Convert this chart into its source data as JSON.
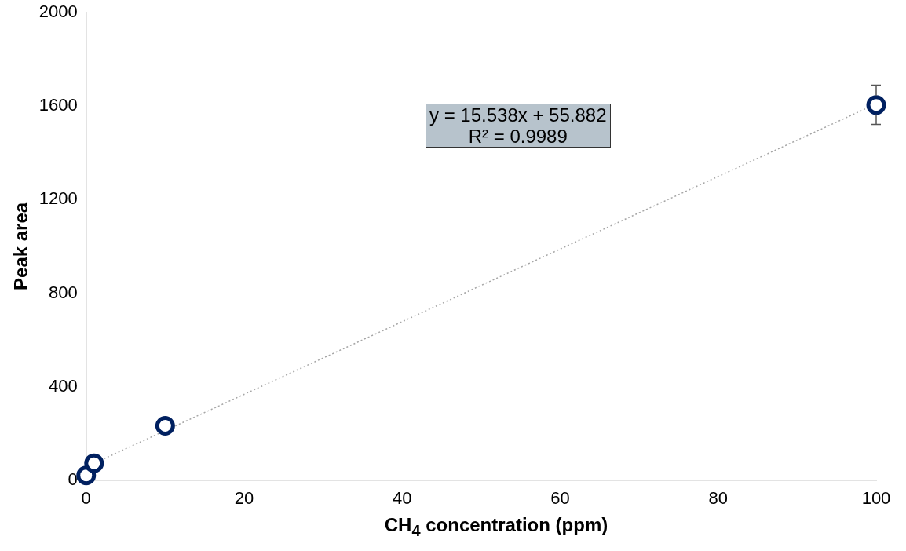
{
  "chart_data": {
    "type": "scatter",
    "xlabel": "CH$_{4}$ concentration (ppm)",
    "ylabel": "Peak area",
    "xlim": [
      0,
      100
    ],
    "xticks": [
      0,
      20,
      40,
      60,
      80,
      100
    ],
    "ylim": [
      0,
      2000
    ],
    "yticks": [
      0,
      400,
      800,
      1200,
      1600,
      2000
    ],
    "marker": "circle",
    "series": [
      {
        "color": "#002060",
        "x": [
          0,
          1,
          10,
          100
        ],
        "values": [
          20,
          72,
          232,
          1605
        ],
        "errors": [
          null,
          null,
          null,
          [
            1522,
            1690
          ]
        ]
      },
      {
        "type": "line",
        "color": "#a6a6a6",
        "line_style": "dotted",
        "marker": "none",
        "x": [
          0,
          100
        ],
        "values": [
          56,
          1610
        ]
      }
    ],
    "annotations": [
      "y = 15.538x + 55.882\nR² = 0.9989"
    ]
  }
}
